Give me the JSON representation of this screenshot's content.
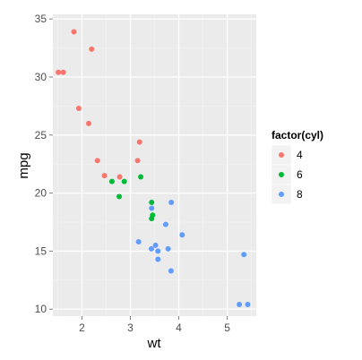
{
  "chart_data": {
    "type": "scatter",
    "xlabel": "wt",
    "ylabel": "mpg",
    "xlim": [
      1.4,
      5.6
    ],
    "ylim": [
      9.4,
      35.4
    ],
    "x_ticks": [
      2,
      3,
      4,
      5
    ],
    "y_ticks": [
      10,
      15,
      20,
      25,
      30,
      35
    ],
    "x_minor": [
      1.5,
      2.5,
      3.5,
      4.5,
      5.5
    ],
    "y_minor": [
      12.5,
      17.5,
      22.5,
      27.5,
      32.5
    ],
    "grid": true,
    "legend": {
      "title": "factor(cyl)",
      "position": "right"
    },
    "series": [
      {
        "name": "4",
        "color": "#F8766D",
        "points": [
          [
            1.835,
            33.9
          ],
          [
            1.615,
            30.4
          ],
          [
            1.513,
            30.4
          ],
          [
            2.2,
            32.4
          ],
          [
            1.935,
            27.3
          ],
          [
            2.14,
            26.0
          ],
          [
            3.19,
            24.4
          ],
          [
            2.32,
            22.8
          ],
          [
            3.15,
            22.8
          ],
          [
            2.465,
            21.5
          ],
          [
            2.78,
            21.4
          ]
        ]
      },
      {
        "name": "6",
        "color": "#00BA38",
        "points": [
          [
            2.62,
            21.0
          ],
          [
            2.875,
            21.0
          ],
          [
            3.215,
            21.4
          ],
          [
            3.44,
            19.2
          ],
          [
            3.44,
            17.8
          ],
          [
            3.46,
            18.1
          ],
          [
            2.77,
            19.7
          ]
        ]
      },
      {
        "name": "8",
        "color": "#619CFF",
        "points": [
          [
            3.44,
            18.7
          ],
          [
            3.57,
            14.3
          ],
          [
            4.07,
            16.4
          ],
          [
            3.73,
            17.3
          ],
          [
            3.78,
            15.2
          ],
          [
            5.25,
            10.4
          ],
          [
            5.424,
            10.4
          ],
          [
            5.345,
            14.7
          ],
          [
            3.52,
            15.5
          ],
          [
            3.435,
            15.2
          ],
          [
            3.84,
            13.3
          ],
          [
            3.845,
            19.2
          ],
          [
            3.17,
            15.8
          ],
          [
            3.57,
            15.0
          ]
        ]
      }
    ]
  }
}
